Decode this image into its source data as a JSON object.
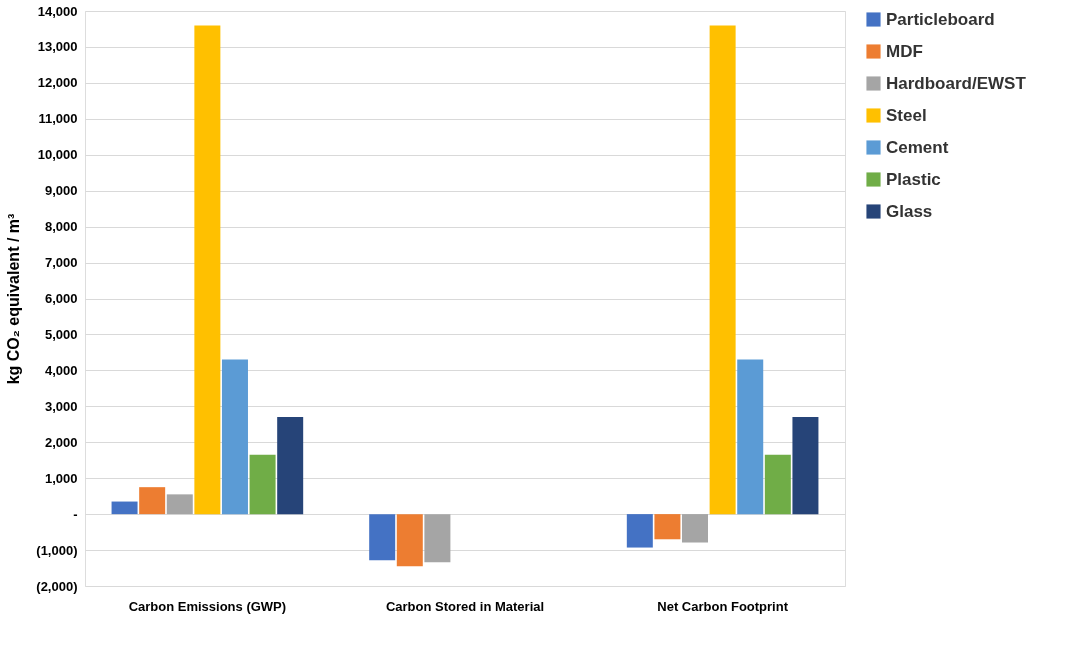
{
  "chart_data": {
    "type": "bar",
    "ylabel": "kg CO₂ equivalent / m³",
    "categories": [
      "Carbon Emissions (GWP)",
      "Carbon Stored in Material",
      "Net Carbon Footprint"
    ],
    "series": [
      {
        "name": "Particleboard",
        "color": "#4472c4",
        "values": [
          350,
          -1280,
          -930
        ]
      },
      {
        "name": "MDF",
        "color": "#ed7d31",
        "values": [
          750,
          -1450,
          -700
        ]
      },
      {
        "name": "Hardboard/EWST",
        "color": "#a5a5a5",
        "values": [
          550,
          -1340,
          -790
        ]
      },
      {
        "name": "Steel",
        "color": "#ffc000",
        "values": [
          13600,
          0,
          13600
        ]
      },
      {
        "name": "Cement",
        "color": "#5b9bd5",
        "values": [
          4300,
          0,
          4300
        ]
      },
      {
        "name": "Plastic",
        "color": "#70ad47",
        "values": [
          1650,
          0,
          1650
        ]
      },
      {
        "name": "Glass",
        "color": "#264478",
        "values": [
          2700,
          0,
          2700
        ]
      }
    ],
    "ylim": [
      -2000,
      14000
    ],
    "yticks": [
      {
        "value": -2000,
        "label": "(2,000)"
      },
      {
        "value": -1000,
        "label": "(1,000)"
      },
      {
        "value": 0,
        "label": "-"
      },
      {
        "value": 1000,
        "label": "1,000"
      },
      {
        "value": 2000,
        "label": "2,000"
      },
      {
        "value": 3000,
        "label": "3,000"
      },
      {
        "value": 4000,
        "label": "4,000"
      },
      {
        "value": 5000,
        "label": "5,000"
      },
      {
        "value": 6000,
        "label": "6,000"
      },
      {
        "value": 7000,
        "label": "7,000"
      },
      {
        "value": 8000,
        "label": "8,000"
      },
      {
        "value": 9000,
        "label": "9,000"
      },
      {
        "value": 10000,
        "label": "10,000"
      },
      {
        "value": 11000,
        "label": "11,000"
      },
      {
        "value": 12000,
        "label": "12,000"
      },
      {
        "value": 13000,
        "label": "13,000"
      },
      {
        "value": 14000,
        "label": "14,000"
      }
    ],
    "grid": "y",
    "legend": "right"
  }
}
